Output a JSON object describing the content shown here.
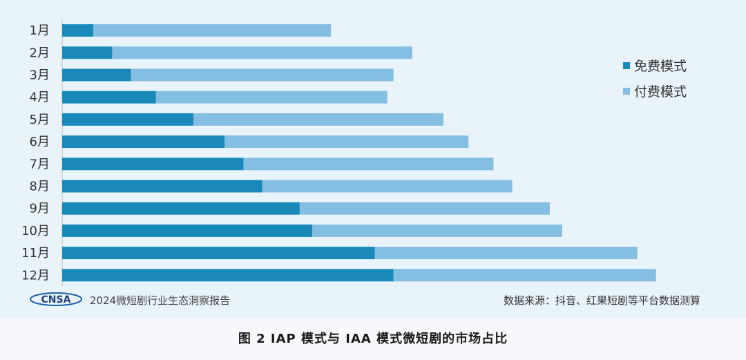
{
  "chart_data": {
    "type": "bar",
    "orientation": "horizontal",
    "stacked": true,
    "categories": [
      "1月",
      "2月",
      "3月",
      "4月",
      "5月",
      "6月",
      "7月",
      "8月",
      "9月",
      "10月",
      "11月",
      "12月"
    ],
    "series": [
      {
        "name": "免费模式",
        "color": "#1889b8",
        "values": [
          5,
          8,
          11,
          15,
          21,
          26,
          29,
          32,
          38,
          40,
          50,
          53
        ]
      },
      {
        "name": "付费模式",
        "color": "#85bee3",
        "values": [
          38,
          48,
          42,
          37,
          40,
          39,
          40,
          40,
          40,
          40,
          42,
          42
        ]
      }
    ],
    "legend_position": "right",
    "grid": false
  },
  "footer": {
    "logo_text": "CNSA",
    "report_name": "2024微短剧行业生态洞察报告",
    "source": "数据来源：抖音、红果短剧等平台数据测算"
  },
  "caption": "图 2 IAP 模式与 IAA 模式微短剧的市场占比"
}
